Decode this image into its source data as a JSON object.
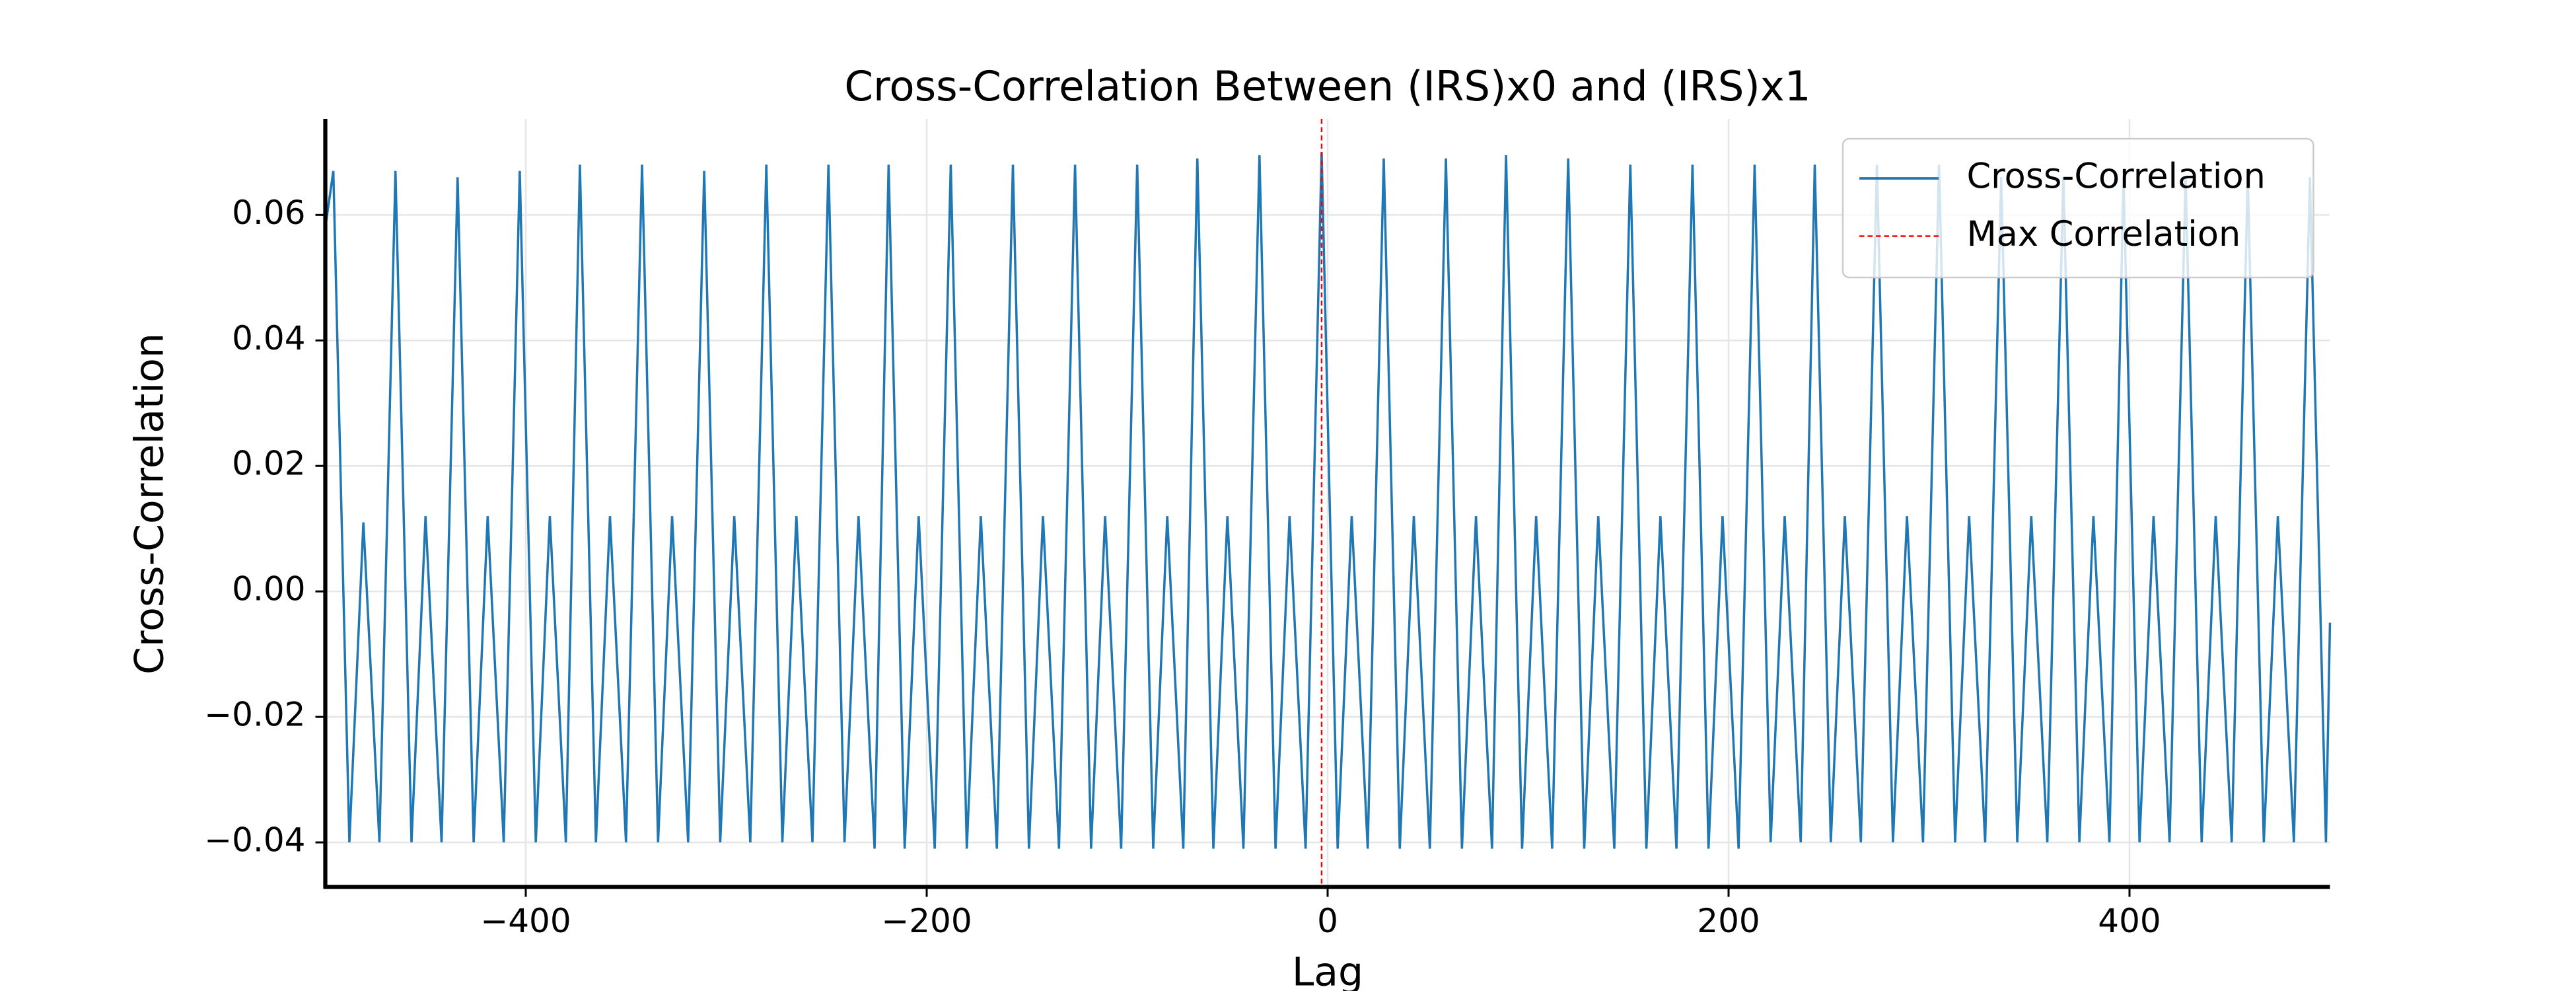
{
  "chart_data": {
    "type": "line",
    "title": "Cross-Correlation Between (IRS)x0 and (IRS)x1",
    "xlabel": "Lag",
    "ylabel": "Cross-Correlation",
    "x": [
      -500,
      -496,
      -488,
      -481,
      -473,
      -465,
      -457,
      -450,
      -442,
      -434,
      -426,
      -419,
      -411,
      -403,
      -395,
      -388,
      -380,
      -373,
      -365,
      -358,
      -350,
      -342,
      -334,
      -327,
      -319,
      -311,
      -303,
      -296,
      -288,
      -280,
      -272,
      -265,
      -257,
      -249,
      -241,
      -234,
      -226,
      -219,
      -211,
      -204,
      -196,
      -188,
      -180,
      -173,
      -165,
      -157,
      -149,
      -142,
      -134,
      -126,
      -118,
      -111,
      -103,
      -95,
      -87,
      -80,
      -72,
      -65,
      -57,
      -50,
      -42,
      -34,
      -26,
      -19,
      -11,
      -3,
      5,
      12,
      20,
      28,
      36,
      43,
      51,
      59,
      67,
      74,
      82,
      89,
      97,
      104,
      112,
      120,
      128,
      135,
      143,
      151,
      159,
      166,
      174,
      182,
      190,
      197,
      205,
      213,
      221,
      228,
      236,
      243,
      251,
      258,
      266,
      274,
      282,
      289,
      297,
      305,
      313,
      320,
      328,
      336,
      344,
      351,
      359,
      367,
      375,
      382,
      390,
      397,
      405,
      412,
      420,
      428,
      436,
      443,
      451,
      459,
      467,
      474,
      482,
      490,
      498,
      500
    ],
    "series": [
      {
        "name": "Cross-Correlation",
        "color": "#1f77b4",
        "values": [
          0.058,
          0.067,
          -0.04,
          0.011,
          -0.04,
          0.067,
          -0.04,
          0.012,
          -0.04,
          0.066,
          -0.04,
          0.012,
          -0.04,
          0.067,
          -0.04,
          0.012,
          -0.04,
          0.068,
          -0.04,
          0.012,
          -0.04,
          0.068,
          -0.04,
          0.012,
          -0.04,
          0.067,
          -0.04,
          0.012,
          -0.04,
          0.068,
          -0.04,
          0.012,
          -0.04,
          0.068,
          -0.04,
          0.012,
          -0.041,
          0.068,
          -0.041,
          0.012,
          -0.041,
          0.068,
          -0.041,
          0.012,
          -0.041,
          0.068,
          -0.041,
          0.012,
          -0.041,
          0.068,
          -0.041,
          0.012,
          -0.041,
          0.068,
          -0.041,
          0.012,
          -0.041,
          0.069,
          -0.041,
          0.012,
          -0.041,
          0.0695,
          -0.041,
          0.012,
          -0.041,
          0.07,
          -0.041,
          0.012,
          -0.041,
          0.069,
          -0.041,
          0.012,
          -0.041,
          0.069,
          -0.041,
          0.012,
          -0.041,
          0.0695,
          -0.041,
          0.012,
          -0.041,
          0.069,
          -0.041,
          0.012,
          -0.041,
          0.068,
          -0.041,
          0.012,
          -0.041,
          0.068,
          -0.041,
          0.012,
          -0.041,
          0.068,
          -0.04,
          0.012,
          -0.04,
          0.068,
          -0.04,
          0.012,
          -0.04,
          0.068,
          -0.04,
          0.012,
          -0.04,
          0.068,
          -0.04,
          0.012,
          -0.04,
          0.066,
          -0.04,
          0.012,
          -0.04,
          0.066,
          -0.04,
          0.012,
          -0.04,
          0.066,
          -0.04,
          0.012,
          -0.04,
          0.066,
          -0.04,
          0.012,
          -0.04,
          0.066,
          -0.04,
          0.012,
          -0.04,
          0.066,
          -0.04,
          -0.005
        ]
      }
    ],
    "vlines": [
      {
        "name": "Max Correlation",
        "x": -3,
        "color": "#ff0000"
      }
    ],
    "xlim": [
      -500,
      500
    ],
    "xticks": [
      {
        "value": -400,
        "label": "−400"
      },
      {
        "value": -200,
        "label": "−200"
      },
      0,
      200,
      400
    ],
    "ylim": [
      -0.0471,
      0.0753
    ],
    "yticks": [
      {
        "value": -0.04,
        "label": "−0.04"
      },
      {
        "value": -0.02,
        "label": "−0.02"
      },
      {
        "value": 0,
        "label": "0.00"
      },
      0.02,
      0.04,
      0.06
    ],
    "grid": true,
    "legend": "upper right"
  }
}
